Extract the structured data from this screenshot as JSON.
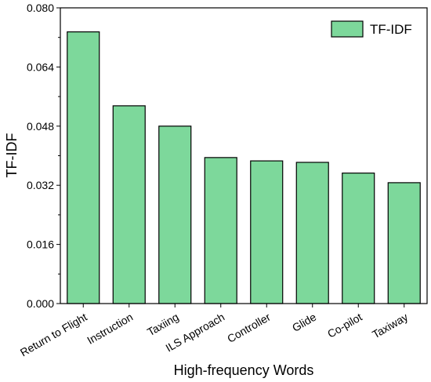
{
  "chart_data": {
    "type": "bar",
    "title": "",
    "xlabel": "High-frequency Words",
    "ylabel": "TF-IDF",
    "categories": [
      "Return to Flight",
      "Instruction",
      "Taxiing",
      "ILS Approach",
      "Controller",
      "Glide",
      "Co-pilot",
      "Taxiway"
    ],
    "series": [
      {
        "name": "TF-IDF",
        "values": [
          0.0735,
          0.0535,
          0.048,
          0.0395,
          0.0386,
          0.0382,
          0.0353,
          0.0327
        ]
      }
    ],
    "ylim": [
      0,
      0.08
    ],
    "yticks": [
      "0.000",
      "0.016",
      "0.032",
      "0.048",
      "0.064",
      "0.080"
    ],
    "ytick_values": [
      0,
      0.016,
      0.032,
      0.048,
      0.064,
      0.08
    ],
    "grid": false,
    "legend_position": "top-right",
    "colors": {
      "bar_fill": "#7dd89b",
      "bar_stroke": "#000000"
    }
  }
}
